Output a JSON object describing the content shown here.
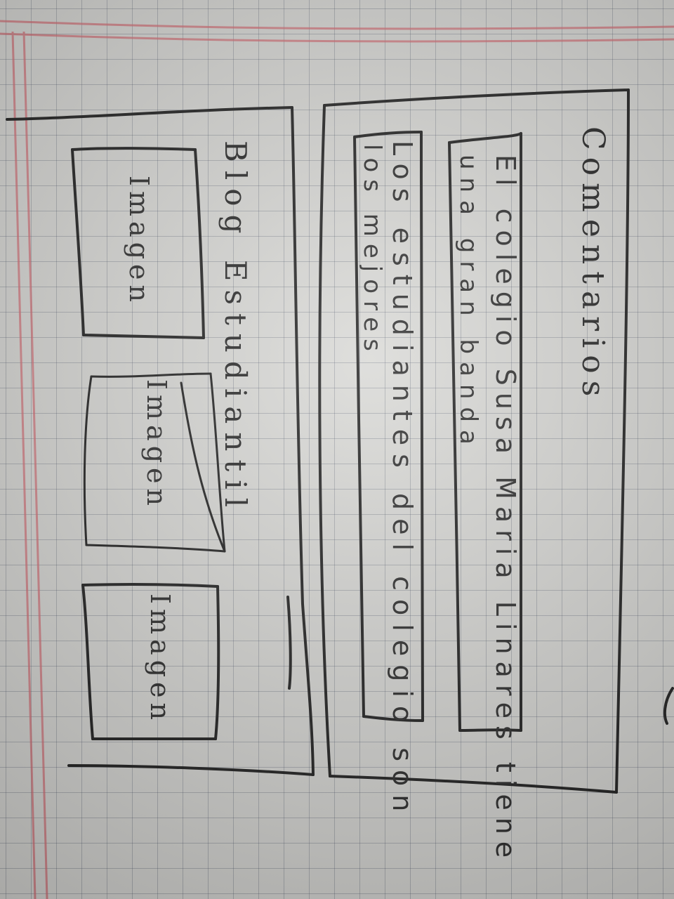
{
  "left_panel": {
    "title": "Blog Estudiantil",
    "images": [
      {
        "label": "Imagen"
      },
      {
        "label": "Imagen"
      },
      {
        "label": "Imagen"
      }
    ]
  },
  "right_panel": {
    "title": "Comentarios",
    "comments": [
      {
        "line1": "El colegio Susa Maria Linares tiene",
        "line2": "una gran banda"
      },
      {
        "line1": "Los estudiantes del colegio son",
        "line2": "los mejores"
      }
    ]
  }
}
